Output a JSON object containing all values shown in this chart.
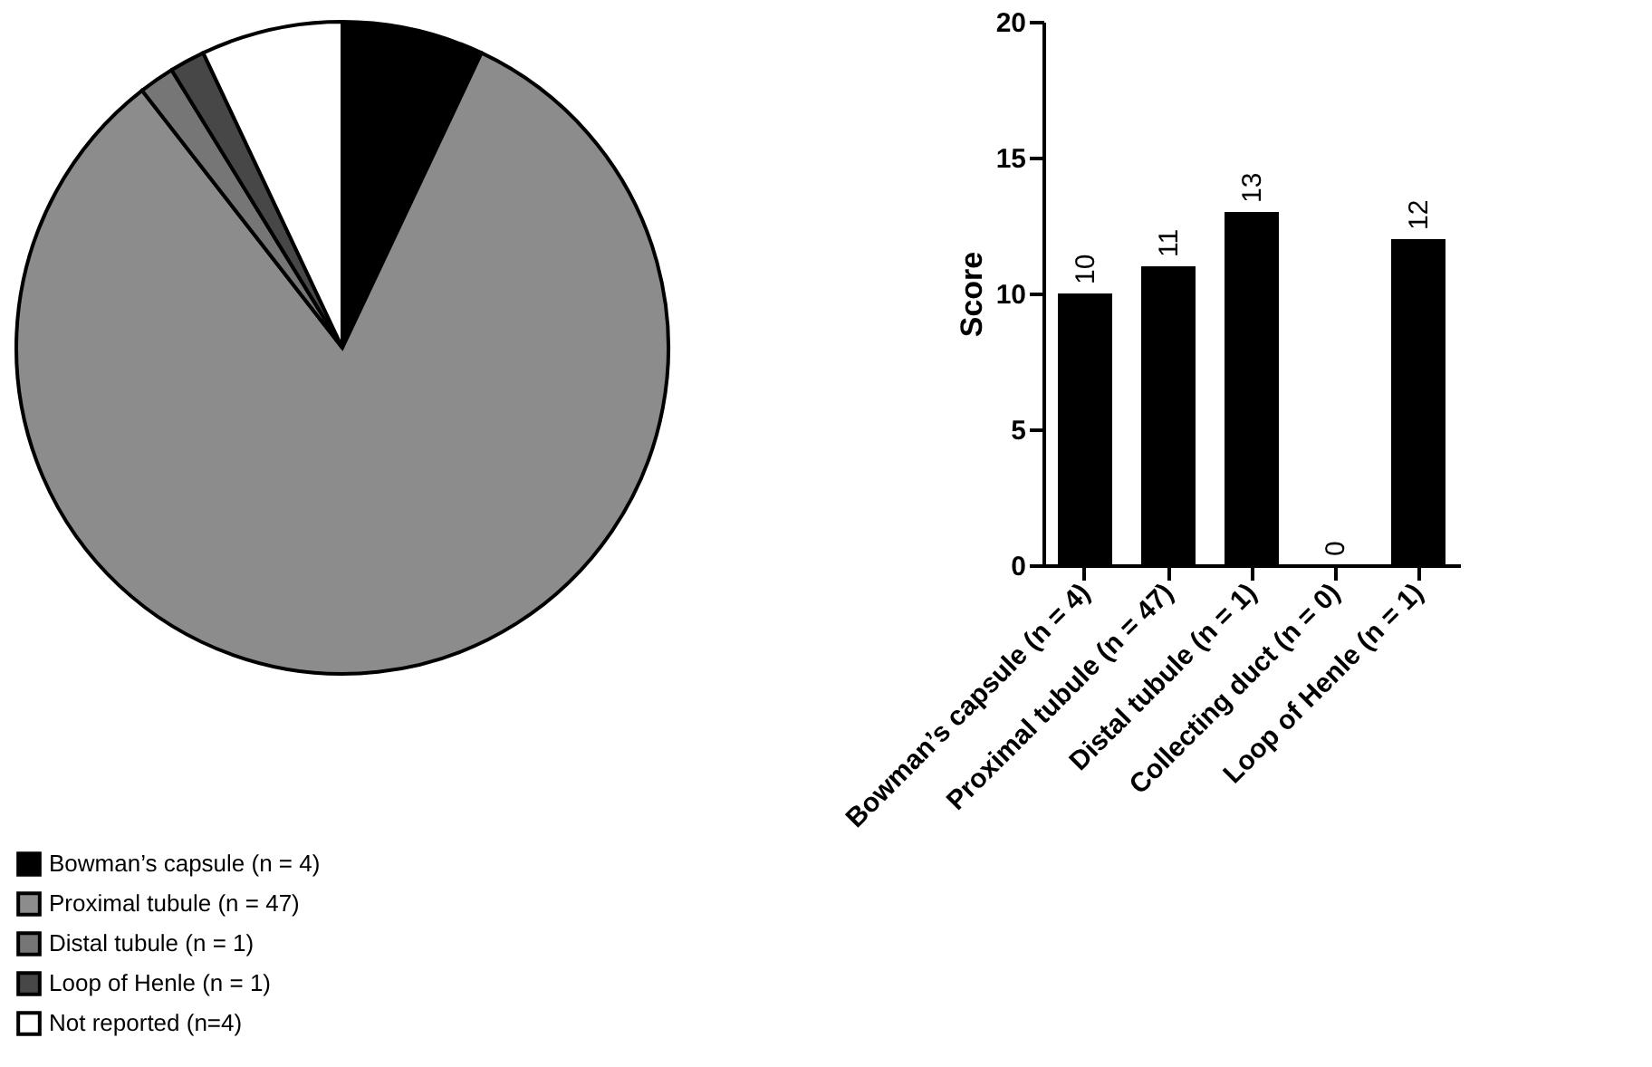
{
  "chart_data": [
    {
      "type": "pie",
      "categories": [
        "Bowman’s capsule (n = 4)",
        "Proximal tubule (n = 47)",
        "Distal tubule (n = 1)",
        "Loop of Henle (n = 1)",
        "Not reported (n=4)"
      ],
      "values": [
        4,
        47,
        1,
        1,
        4
      ],
      "colors": [
        "#000000",
        "#8c8c8c",
        "#767676",
        "#474747",
        "#ffffff"
      ],
      "legend": "bottom"
    },
    {
      "type": "bar",
      "categories": [
        "Bowman’s capsule (n = 4)",
        "Proximal tubule (n = 47)",
        "Distal tubule (n = 1)",
        "Collecting duct (n = 0)",
        "Loop of Henle (n = 1)"
      ],
      "values": [
        10,
        11,
        13,
        0,
        12
      ],
      "color": "#000000",
      "ylabel": "Score",
      "ylim": [
        0,
        20
      ],
      "yticks": [
        0,
        5,
        10,
        15,
        20
      ],
      "data_labels": true
    }
  ]
}
